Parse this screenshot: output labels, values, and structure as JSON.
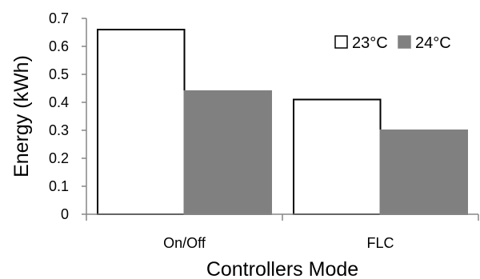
{
  "chart_data": {
    "type": "bar",
    "categories": [
      "On/Off",
      "FLC"
    ],
    "series": [
      {
        "name": "23°C",
        "values": [
          0.66,
          0.41
        ],
        "color": "#ffffff",
        "stroke": "#000000"
      },
      {
        "name": "24°C",
        "values": [
          0.44,
          0.3
        ],
        "color": "#808080",
        "stroke": "#808080"
      }
    ],
    "title": "",
    "xlabel": "Controllers Mode",
    "ylabel": "Energy (kWh)",
    "ylim": [
      0,
      0.7
    ],
    "yticks": [
      0,
      0.1,
      0.2,
      0.3,
      0.4,
      0.5,
      0.6,
      0.7
    ],
    "ytick_labels": [
      "0",
      "0.1",
      "0.2",
      "0.3",
      "0.4",
      "0.5",
      "0.6",
      "0.7"
    ],
    "grid": false,
    "legend_position": "top-right"
  }
}
